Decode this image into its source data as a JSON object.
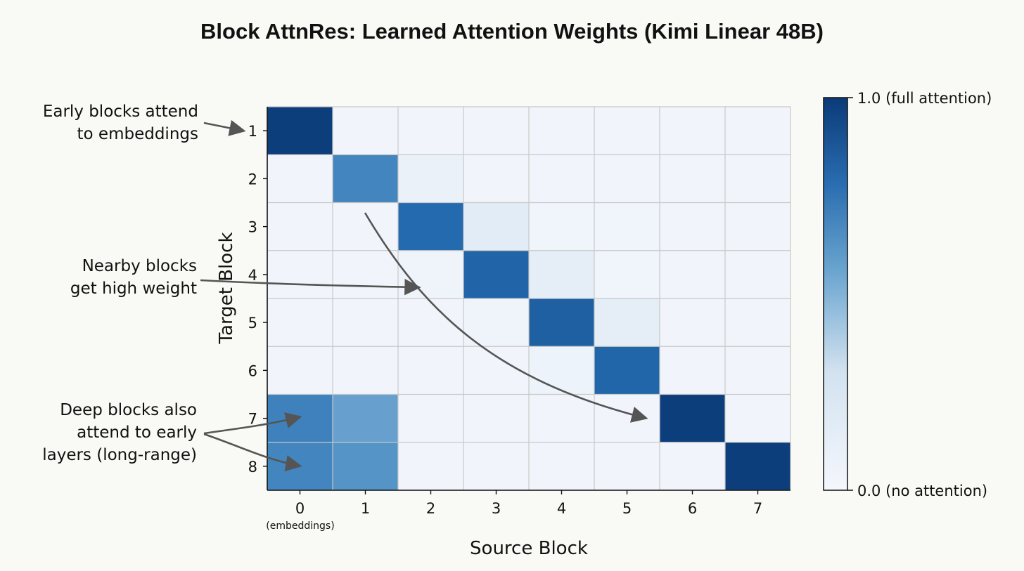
{
  "chart_data": {
    "type": "heatmap",
    "title": "Block AttnRes: Learned Attention Weights (Kimi Linear 48B)",
    "xlabel": "Source Block",
    "ylabel": "Target Block",
    "x_categories": [
      "0",
      "1",
      "2",
      "3",
      "4",
      "5",
      "6",
      "7"
    ],
    "x_sublabel": "(embeddings)",
    "y_categories": [
      "1",
      "2",
      "3",
      "4",
      "5",
      "6",
      "7",
      "8"
    ],
    "value_range": [
      0,
      1
    ],
    "colorscale": "Blues",
    "grid": true,
    "values": [
      [
        0.98,
        0.02,
        0.02,
        0.02,
        0.02,
        0.02,
        0.02,
        0.02
      ],
      [
        0.02,
        0.62,
        0.07,
        0.02,
        0.02,
        0.02,
        0.02,
        0.02
      ],
      [
        0.02,
        0.02,
        0.75,
        0.13,
        0.03,
        0.03,
        0.02,
        0.02
      ],
      [
        0.02,
        0.02,
        0.04,
        0.78,
        0.1,
        0.03,
        0.02,
        0.02
      ],
      [
        0.02,
        0.02,
        0.02,
        0.04,
        0.8,
        0.1,
        0.02,
        0.02
      ],
      [
        0.02,
        0.02,
        0.02,
        0.02,
        0.05,
        0.77,
        0.02,
        0.02
      ],
      [
        0.64,
        0.5,
        0.02,
        0.02,
        0.02,
        0.02,
        0.98,
        0.02
      ],
      [
        0.62,
        0.55,
        0.02,
        0.02,
        0.02,
        0.02,
        0.02,
        0.98
      ]
    ],
    "colorbar": {
      "max_label": "1.0 (full attention)",
      "min_label": "0.0 (no attention)"
    },
    "annotations": [
      {
        "id": "early",
        "lines": [
          "Early blocks attend",
          "to embeddings"
        ]
      },
      {
        "id": "nearby",
        "lines": [
          "Nearby blocks",
          "get high weight"
        ]
      },
      {
        "id": "deep",
        "lines": [
          "Deep blocks also",
          "attend to early",
          "layers (long-range)"
        ]
      }
    ]
  },
  "colors": {
    "low": "#f4f7fc",
    "mid": "#4a8fc5",
    "high": "#0b3a78",
    "grid": "#c8c8c8",
    "arrow": "#555555",
    "background": "#f9f9f6"
  }
}
